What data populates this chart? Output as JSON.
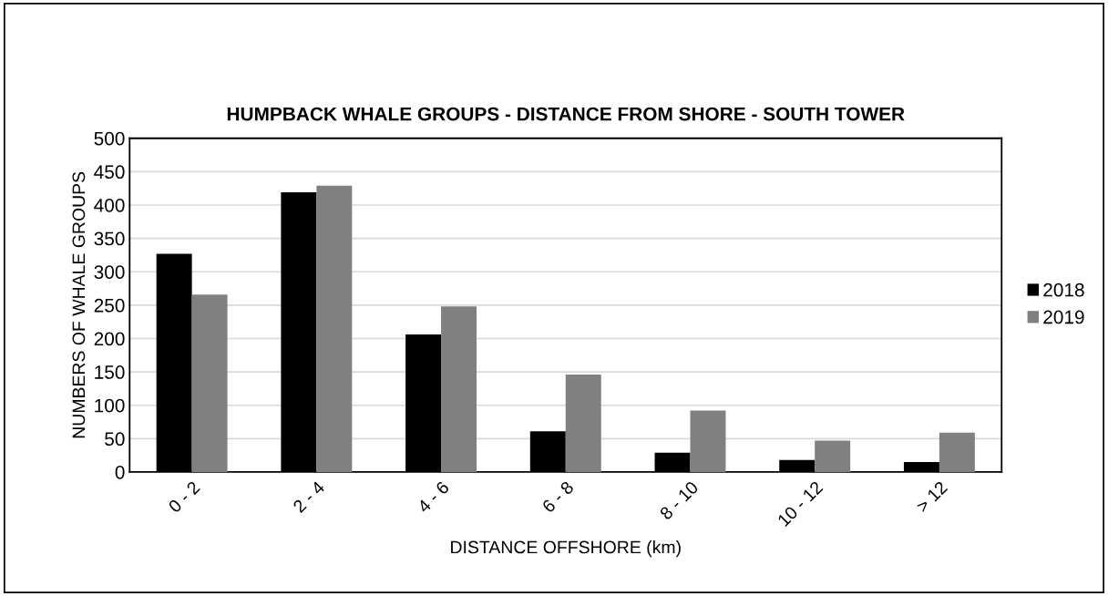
{
  "chart_data": {
    "type": "bar",
    "title": "HUMPBACK WHALE GROUPS - DISTANCE FROM SHORE - SOUTH TOWER",
    "xlabel": "DISTANCE OFFSHORE (km)",
    "ylabel": "NUMBERS OF WHALE GROUPS",
    "categories": [
      "0 - 2",
      "2 - 4",
      "4 - 6",
      "6 - 8",
      "8 - 10",
      "10 - 12",
      "> 12"
    ],
    "series": [
      {
        "name": "2018",
        "color": "#000000",
        "values": [
          327,
          419,
          206,
          61,
          29,
          18,
          15
        ]
      },
      {
        "name": "2019",
        "color": "#808080",
        "values": [
          266,
          429,
          248,
          146,
          92,
          47,
          59
        ]
      }
    ],
    "ylim": [
      0,
      500
    ],
    "yticks": [
      0,
      50,
      100,
      150,
      200,
      250,
      300,
      350,
      400,
      450,
      500
    ],
    "grid": "y",
    "legend": "right"
  }
}
